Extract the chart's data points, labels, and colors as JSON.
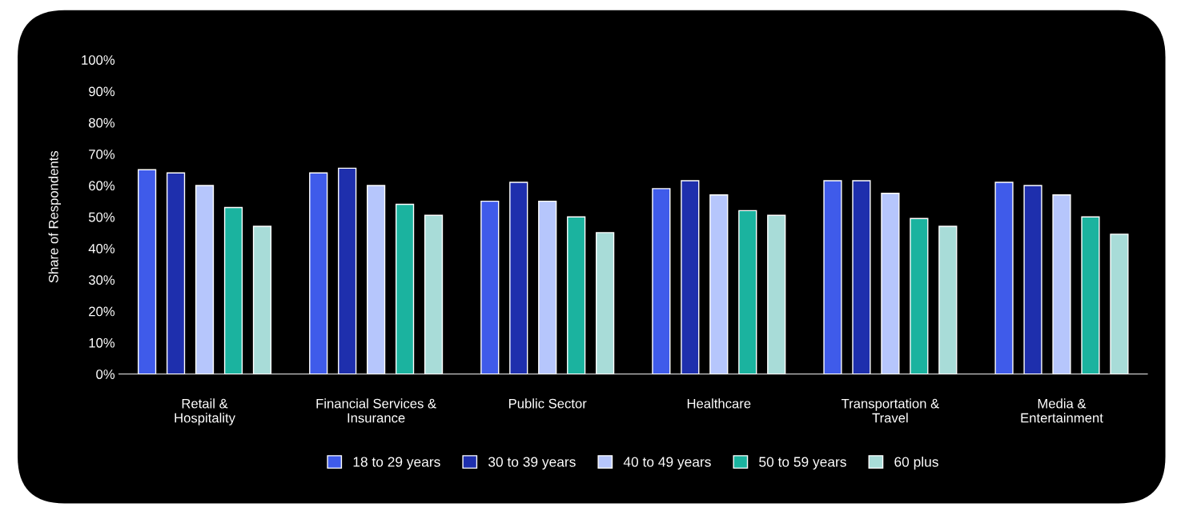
{
  "chart_data": {
    "type": "bar",
    "ylabel": "Share of Respondents",
    "categories": [
      "Retail &\nHospitality",
      "Financial Services &\nInsurance",
      "Public Sector",
      "Healthcare",
      "Transportation &\nTravel",
      "Media &\nEntertainment"
    ],
    "series": [
      {
        "name": "18 to 29 years",
        "color": "#3f5bea",
        "values": [
          65,
          64,
          55,
          59,
          61.5,
          61
        ]
      },
      {
        "name": "30 to 39 years",
        "color": "#1e2fad",
        "values": [
          64,
          65.5,
          61,
          61.5,
          61.5,
          60
        ]
      },
      {
        "name": "40 to 49 years",
        "color": "#b6c6fc",
        "values": [
          60,
          60,
          55,
          57,
          57.5,
          57
        ]
      },
      {
        "name": "50 to 59 years",
        "color": "#1bb39f",
        "values": [
          53,
          54,
          50,
          52,
          49.5,
          50
        ]
      },
      {
        "name": "60 plus",
        "color": "#a8dcd8",
        "values": [
          47,
          50.5,
          45,
          50.5,
          47,
          44.5
        ]
      }
    ],
    "ylim": [
      0,
      100
    ],
    "yticks": [
      {
        "value": 0,
        "label": "0%"
      },
      {
        "value": 10,
        "label": "10%"
      },
      {
        "value": 20,
        "label": "20%"
      },
      {
        "value": 30,
        "label": "30%"
      },
      {
        "value": 40,
        "label": "40%"
      },
      {
        "value": 50,
        "label": "50%"
      },
      {
        "value": 60,
        "label": "60%"
      },
      {
        "value": 70,
        "label": "70%"
      },
      {
        "value": 80,
        "label": "80%"
      },
      {
        "value": 90,
        "label": "90%"
      },
      {
        "value": 100,
        "label": "100%"
      }
    ],
    "grid": false,
    "legend": "bottom"
  }
}
